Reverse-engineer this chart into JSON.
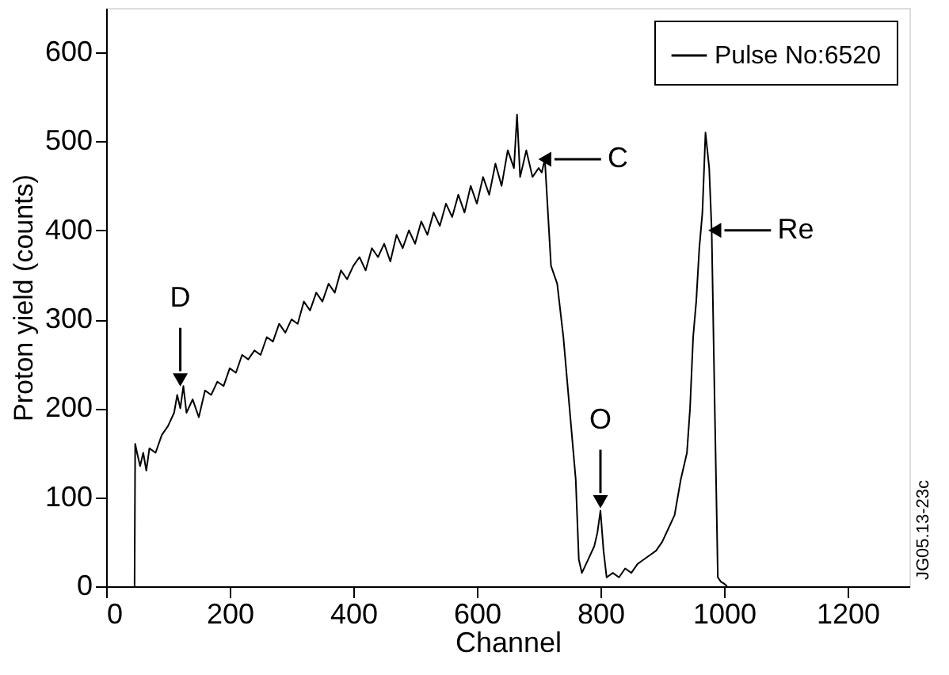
{
  "chart_data": {
    "type": "line",
    "xlabel": "Channel",
    "ylabel": "Proton yield (counts)",
    "xlim": [
      0,
      1300
    ],
    "ylim": [
      0,
      650
    ],
    "xticks": [
      0,
      200,
      400,
      600,
      800,
      1000,
      1200
    ],
    "yticks": [
      0,
      100,
      200,
      300,
      400,
      500,
      600
    ],
    "grid": false,
    "legend": "top right",
    "marker": "none",
    "line_style": "solid",
    "series": [
      {
        "name": "Pulse No:6520",
        "color": "#000000",
        "x": [
          46,
          47,
          50,
          55,
          60,
          65,
          70,
          80,
          90,
          100,
          110,
          115,
          120,
          125,
          130,
          140,
          150,
          160,
          170,
          180,
          190,
          200,
          210,
          220,
          230,
          240,
          250,
          260,
          270,
          280,
          290,
          300,
          310,
          320,
          330,
          340,
          350,
          360,
          370,
          380,
          390,
          400,
          410,
          420,
          430,
          440,
          450,
          460,
          470,
          480,
          490,
          500,
          510,
          520,
          530,
          540,
          550,
          560,
          570,
          580,
          590,
          600,
          610,
          620,
          630,
          640,
          650,
          660,
          665,
          670,
          680,
          690,
          700,
          705,
          710,
          720,
          730,
          740,
          750,
          760,
          765,
          770,
          780,
          790,
          795,
          800,
          805,
          810,
          820,
          830,
          840,
          850,
          860,
          870,
          880,
          890,
          900,
          910,
          920,
          930,
          940,
          945,
          950,
          955,
          960,
          965,
          970,
          973,
          976,
          980,
          985,
          990,
          995,
          1000,
          1005
        ],
        "values": [
          0,
          160,
          150,
          135,
          150,
          130,
          155,
          150,
          170,
          180,
          195,
          215,
          200,
          225,
          195,
          210,
          190,
          220,
          215,
          230,
          225,
          245,
          240,
          260,
          255,
          265,
          260,
          280,
          275,
          295,
          285,
          300,
          295,
          320,
          310,
          330,
          320,
          340,
          330,
          355,
          345,
          360,
          370,
          355,
          380,
          370,
          385,
          365,
          395,
          380,
          400,
          385,
          410,
          395,
          420,
          405,
          430,
          415,
          440,
          420,
          450,
          430,
          460,
          440,
          475,
          450,
          490,
          470,
          530,
          460,
          490,
          460,
          470,
          465,
          480,
          360,
          340,
          280,
          200,
          120,
          30,
          15,
          30,
          45,
          60,
          85,
          40,
          10,
          15,
          10,
          20,
          15,
          25,
          30,
          35,
          40,
          50,
          65,
          80,
          120,
          150,
          200,
          280,
          320,
          380,
          420,
          510,
          490,
          470,
          400,
          200,
          10,
          5,
          3,
          0
        ]
      }
    ],
    "annotations": [
      {
        "text": "D",
        "x": 120,
        "y": 232
      },
      {
        "text": "C",
        "x": 710,
        "y": 480
      },
      {
        "text": "O",
        "x": 800,
        "y": 95
      },
      {
        "text": "Re",
        "x": 985,
        "y": 400
      },
      "JG05.13-23c"
    ]
  }
}
